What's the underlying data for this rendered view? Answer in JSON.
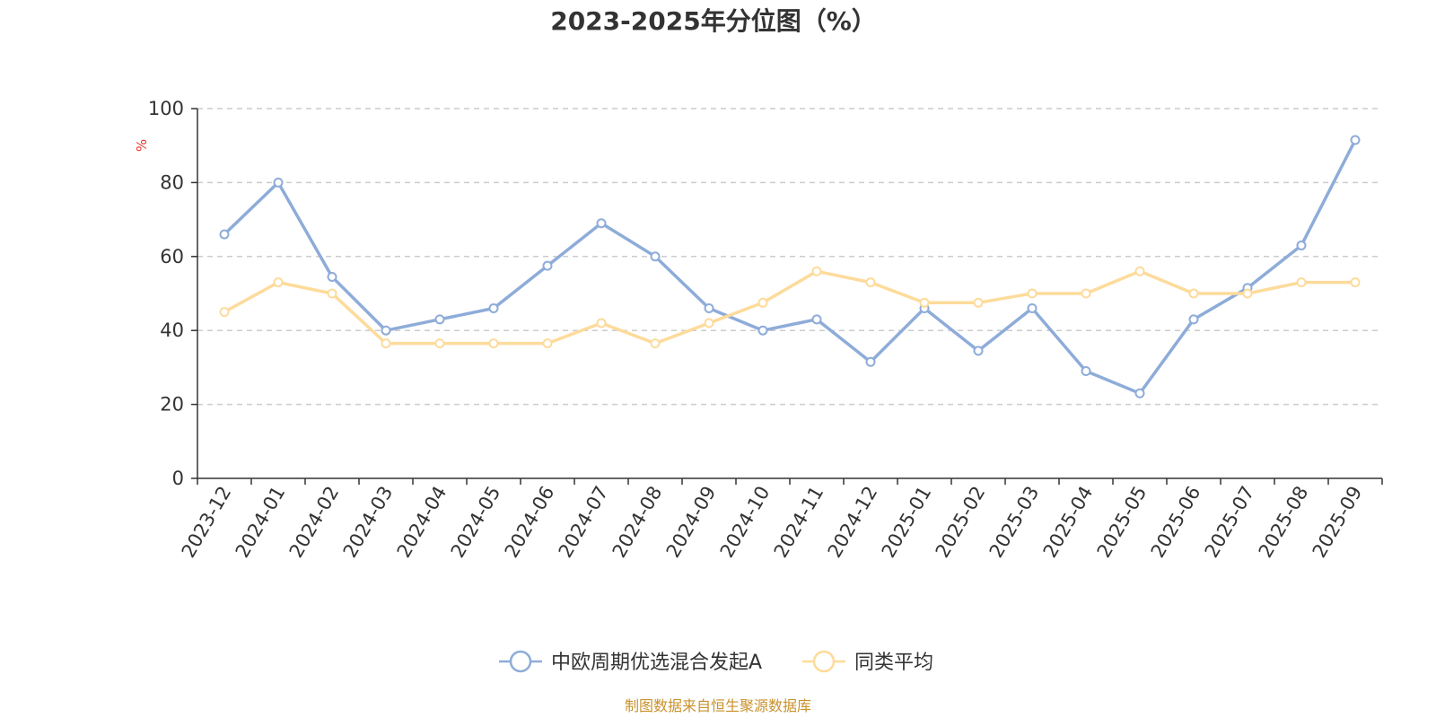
{
  "chart_data": {
    "type": "line",
    "title": "2023-2025年分位图（%）",
    "ylabel": "%",
    "xlabel": "",
    "ylim": [
      0,
      100
    ],
    "yticks": [
      0,
      20,
      40,
      60,
      80,
      100
    ],
    "grid": "horizontal dashed",
    "legend_position": "bottom-center",
    "categories": [
      "2023-12",
      "2024-01",
      "2024-02",
      "2024-03",
      "2024-04",
      "2024-05",
      "2024-06",
      "2024-07",
      "2024-08",
      "2024-09",
      "2024-10",
      "2024-11",
      "2024-12",
      "2025-01",
      "2025-02",
      "2025-03",
      "2025-04",
      "2025-05",
      "2025-06",
      "2025-07",
      "2025-08",
      "2025-09"
    ],
    "series": [
      {
        "name": "中欧周期优选混合发起A",
        "color": "#8eacd9",
        "values": [
          66,
          80,
          54.5,
          40,
          43,
          46,
          57.5,
          69,
          60,
          46,
          40,
          43,
          31.5,
          46,
          34.5,
          46,
          29,
          23,
          43,
          51.5,
          63,
          91.5
        ]
      },
      {
        "name": "同类平均",
        "color": "#fddb9b",
        "values": [
          45,
          53,
          50,
          36.5,
          36.5,
          36.5,
          36.5,
          42,
          36.5,
          42,
          47.5,
          56,
          53,
          47.5,
          47.5,
          50,
          50,
          56,
          50,
          50,
          53,
          53
        ]
      }
    ]
  },
  "source_note": "制图数据来自恒生聚源数据库"
}
